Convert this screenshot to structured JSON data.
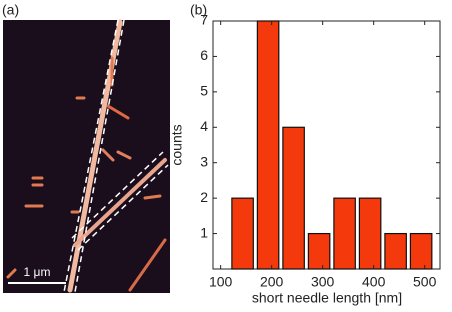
{
  "figure": {
    "panel_a": {
      "label": "(a)",
      "scale_bar": "1 μm"
    }
  },
  "chart_data": {
    "type": "histogram",
    "label": "(b)",
    "x_label": "short needle length [nm]",
    "y_label": "counts",
    "bins": [
      118,
      168,
      218,
      268,
      318,
      368,
      418,
      468,
      518
    ],
    "values": [
      2,
      7,
      4,
      1,
      2,
      2,
      1,
      1
    ],
    "color": "#f43a0c",
    "xlim": [
      85,
      530
    ],
    "xticks": [
      100,
      200,
      300,
      400,
      500
    ],
    "ylim": [
      0,
      7
    ],
    "yticks": [
      1,
      2,
      3,
      4,
      5,
      6,
      7
    ]
  }
}
